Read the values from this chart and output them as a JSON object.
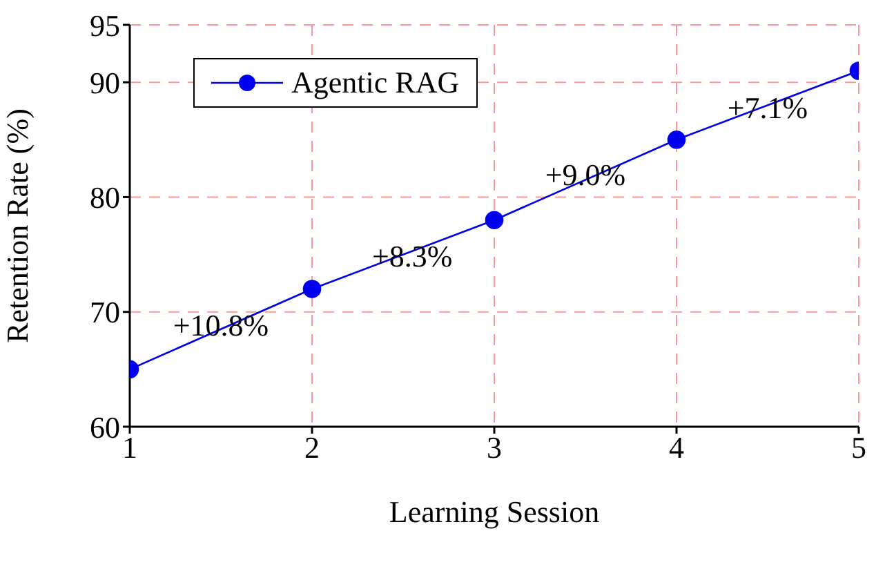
{
  "chart_data": {
    "type": "line",
    "xlabel": "Learning Session",
    "ylabel": "Retention Rate (%)",
    "x": [
      1,
      2,
      3,
      4,
      5
    ],
    "series": [
      {
        "name": "Agentic RAG",
        "color": "#0000ee",
        "values": [
          65,
          72,
          78,
          85,
          91
        ]
      }
    ],
    "xlim": [
      1,
      5
    ],
    "xticks": [
      1,
      2,
      3,
      4,
      5
    ],
    "ylim": [
      60,
      95
    ],
    "yticks": [
      60,
      70,
      80,
      90,
      95
    ],
    "grid": true,
    "legend": "top left",
    "marker": "circle",
    "line_style": "solid",
    "annotations": [
      {
        "text": "+10.8%",
        "x": 1.5,
        "y": 68.9
      },
      {
        "text": "+8.3%",
        "x": 2.55,
        "y": 74.9
      },
      {
        "text": "+9.0%",
        "x": 3.5,
        "y": 82
      },
      {
        "text": "+7.1%",
        "x": 4.5,
        "y": 87.8
      }
    ]
  }
}
